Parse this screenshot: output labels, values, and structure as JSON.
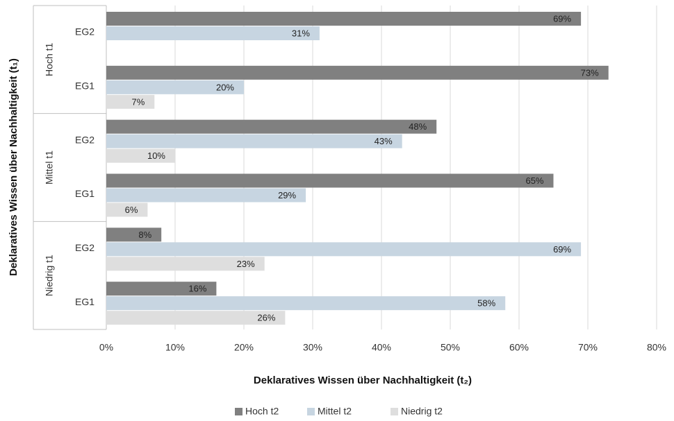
{
  "chart_data": {
    "type": "bar",
    "orientation": "horizontal",
    "category_groups": [
      "Hoch t1",
      "Mittel t1",
      "Niedrig t1"
    ],
    "categories": [
      "EG2",
      "EG1",
      "EG2",
      "EG1",
      "EG2",
      "EG1"
    ],
    "series": [
      {
        "name": "Hoch t2",
        "color": "#808080",
        "values": [
          69,
          73,
          48,
          65,
          8,
          16
        ],
        "value_labels": [
          "69%",
          "73%",
          "48%",
          "65%",
          "8%",
          "16%"
        ]
      },
      {
        "name": "Mittel t2",
        "color": "#c7d5e1",
        "values": [
          31,
          20,
          43,
          29,
          69,
          58
        ],
        "value_labels": [
          "31%",
          "20%",
          "43%",
          "29%",
          "69%",
          "58%"
        ]
      },
      {
        "name": "Niedrig t2",
        "color": "#dedede",
        "values": [
          null,
          7,
          10,
          6,
          23,
          26
        ],
        "value_labels": [
          null,
          "7%",
          "10%",
          "6%",
          "23%",
          "26%"
        ]
      }
    ],
    "xlim": [
      0,
      80
    ],
    "xticks": [
      {
        "value": 0,
        "label": "0%"
      },
      {
        "value": 10,
        "label": "10%"
      },
      {
        "value": 20,
        "label": "20%"
      },
      {
        "value": 30,
        "label": "30%"
      },
      {
        "value": 40,
        "label": "40%"
      },
      {
        "value": 50,
        "label": "50%"
      },
      {
        "value": 60,
        "label": "60%"
      },
      {
        "value": 70,
        "label": "70%"
      },
      {
        "value": 80,
        "label": "80%"
      }
    ],
    "x_label": "Deklaratives Wissen über Nachhaltigkeit (t₂)",
    "y_label": "Deklaratives Wissen über Nachhaltigkeit (t₁)",
    "grid": true,
    "legend": "bottom"
  }
}
